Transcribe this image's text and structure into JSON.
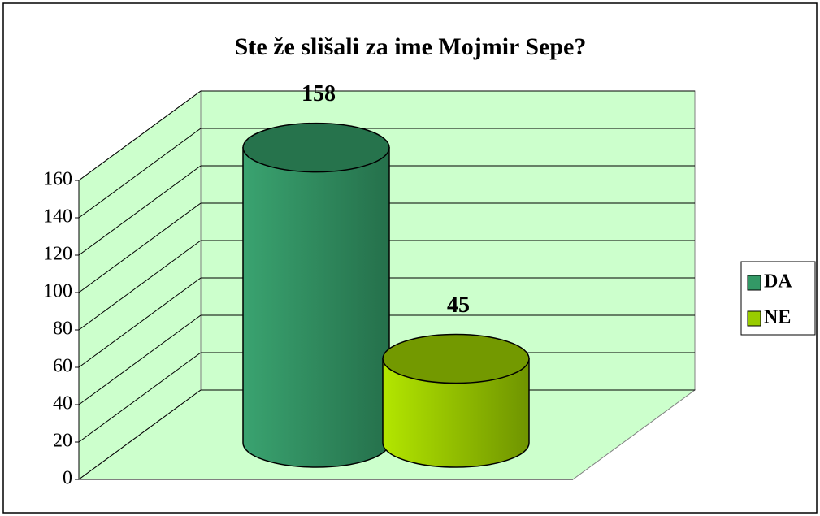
{
  "chart_data": {
    "type": "bar3d",
    "title": "Ste že slišali za ime Mojmir Sepe?",
    "categories": [
      null
    ],
    "series": [
      {
        "name": "DA",
        "color": "#339966",
        "values": [
          158
        ]
      },
      {
        "name": "NE",
        "color": "#99cc00",
        "values": [
          45
        ]
      }
    ],
    "ylim": [
      0,
      160
    ],
    "yticks": [
      0,
      20,
      40,
      60,
      80,
      100,
      120,
      140,
      160
    ],
    "grid": true,
    "legend": "right",
    "wall_color": "#ccffcc"
  }
}
